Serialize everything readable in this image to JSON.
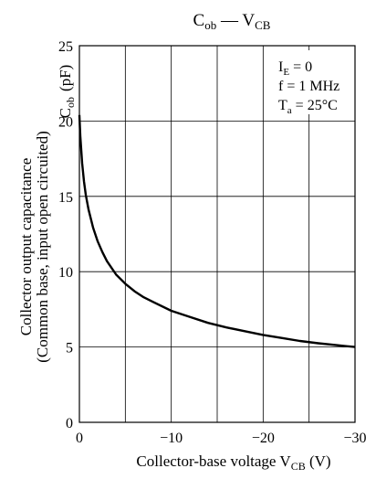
{
  "chart_data": {
    "type": "line",
    "title": {
      "main": "C",
      "main_sub": "ob",
      "sep": " — ",
      "var": "V",
      "var_sub": "CB"
    },
    "xlabel": {
      "main": "Collector-base voltage  V",
      "sub": "CB",
      "unit": "  (V)"
    },
    "ylabel": {
      "line1": "Collector output capacitance",
      "line2": "(Common base, input open circuited)",
      "symbol": "C",
      "symbol_sub": "ob",
      "unit": "(pF)"
    },
    "xlim": [
      0,
      -30
    ],
    "ylim": [
      0,
      25
    ],
    "x_ticks": [
      0,
      -10,
      -20,
      -30
    ],
    "x_tick_labels": [
      "0",
      "−10",
      "−20",
      "−30"
    ],
    "x_grid": [
      0,
      -5,
      -10,
      -15,
      -20,
      -25,
      -30
    ],
    "y_ticks": [
      0,
      5,
      10,
      15,
      20,
      25
    ],
    "y_tick_labels": [
      "0",
      "5",
      "10",
      "15",
      "20",
      "25"
    ],
    "grid": true,
    "annotations": [
      {
        "main": "I",
        "sub": "E",
        "rest": " = 0"
      },
      {
        "main": "f",
        "sub": "",
        "rest": "  = 1 MHz"
      },
      {
        "main": "T",
        "sub": "a",
        "rest": " = 25°C"
      }
    ],
    "series": [
      {
        "x": [
          0,
          -0.1,
          -0.2,
          -0.3,
          -0.5,
          -0.7,
          -1,
          -1.5,
          -2,
          -2.5,
          -3,
          -4,
          -5,
          -6,
          -7,
          -8,
          -10,
          -12,
          -14,
          -16,
          -18,
          -20,
          -22,
          -24,
          -26,
          -28,
          -30
        ],
        "y": [
          20.4,
          19.0,
          18.1,
          17.2,
          16.0,
          15.1,
          14.1,
          12.9,
          12.0,
          11.3,
          10.7,
          9.8,
          9.2,
          8.7,
          8.3,
          8.0,
          7.4,
          7.0,
          6.6,
          6.3,
          6.05,
          5.8,
          5.6,
          5.4,
          5.25,
          5.12,
          5.0
        ]
      }
    ]
  }
}
